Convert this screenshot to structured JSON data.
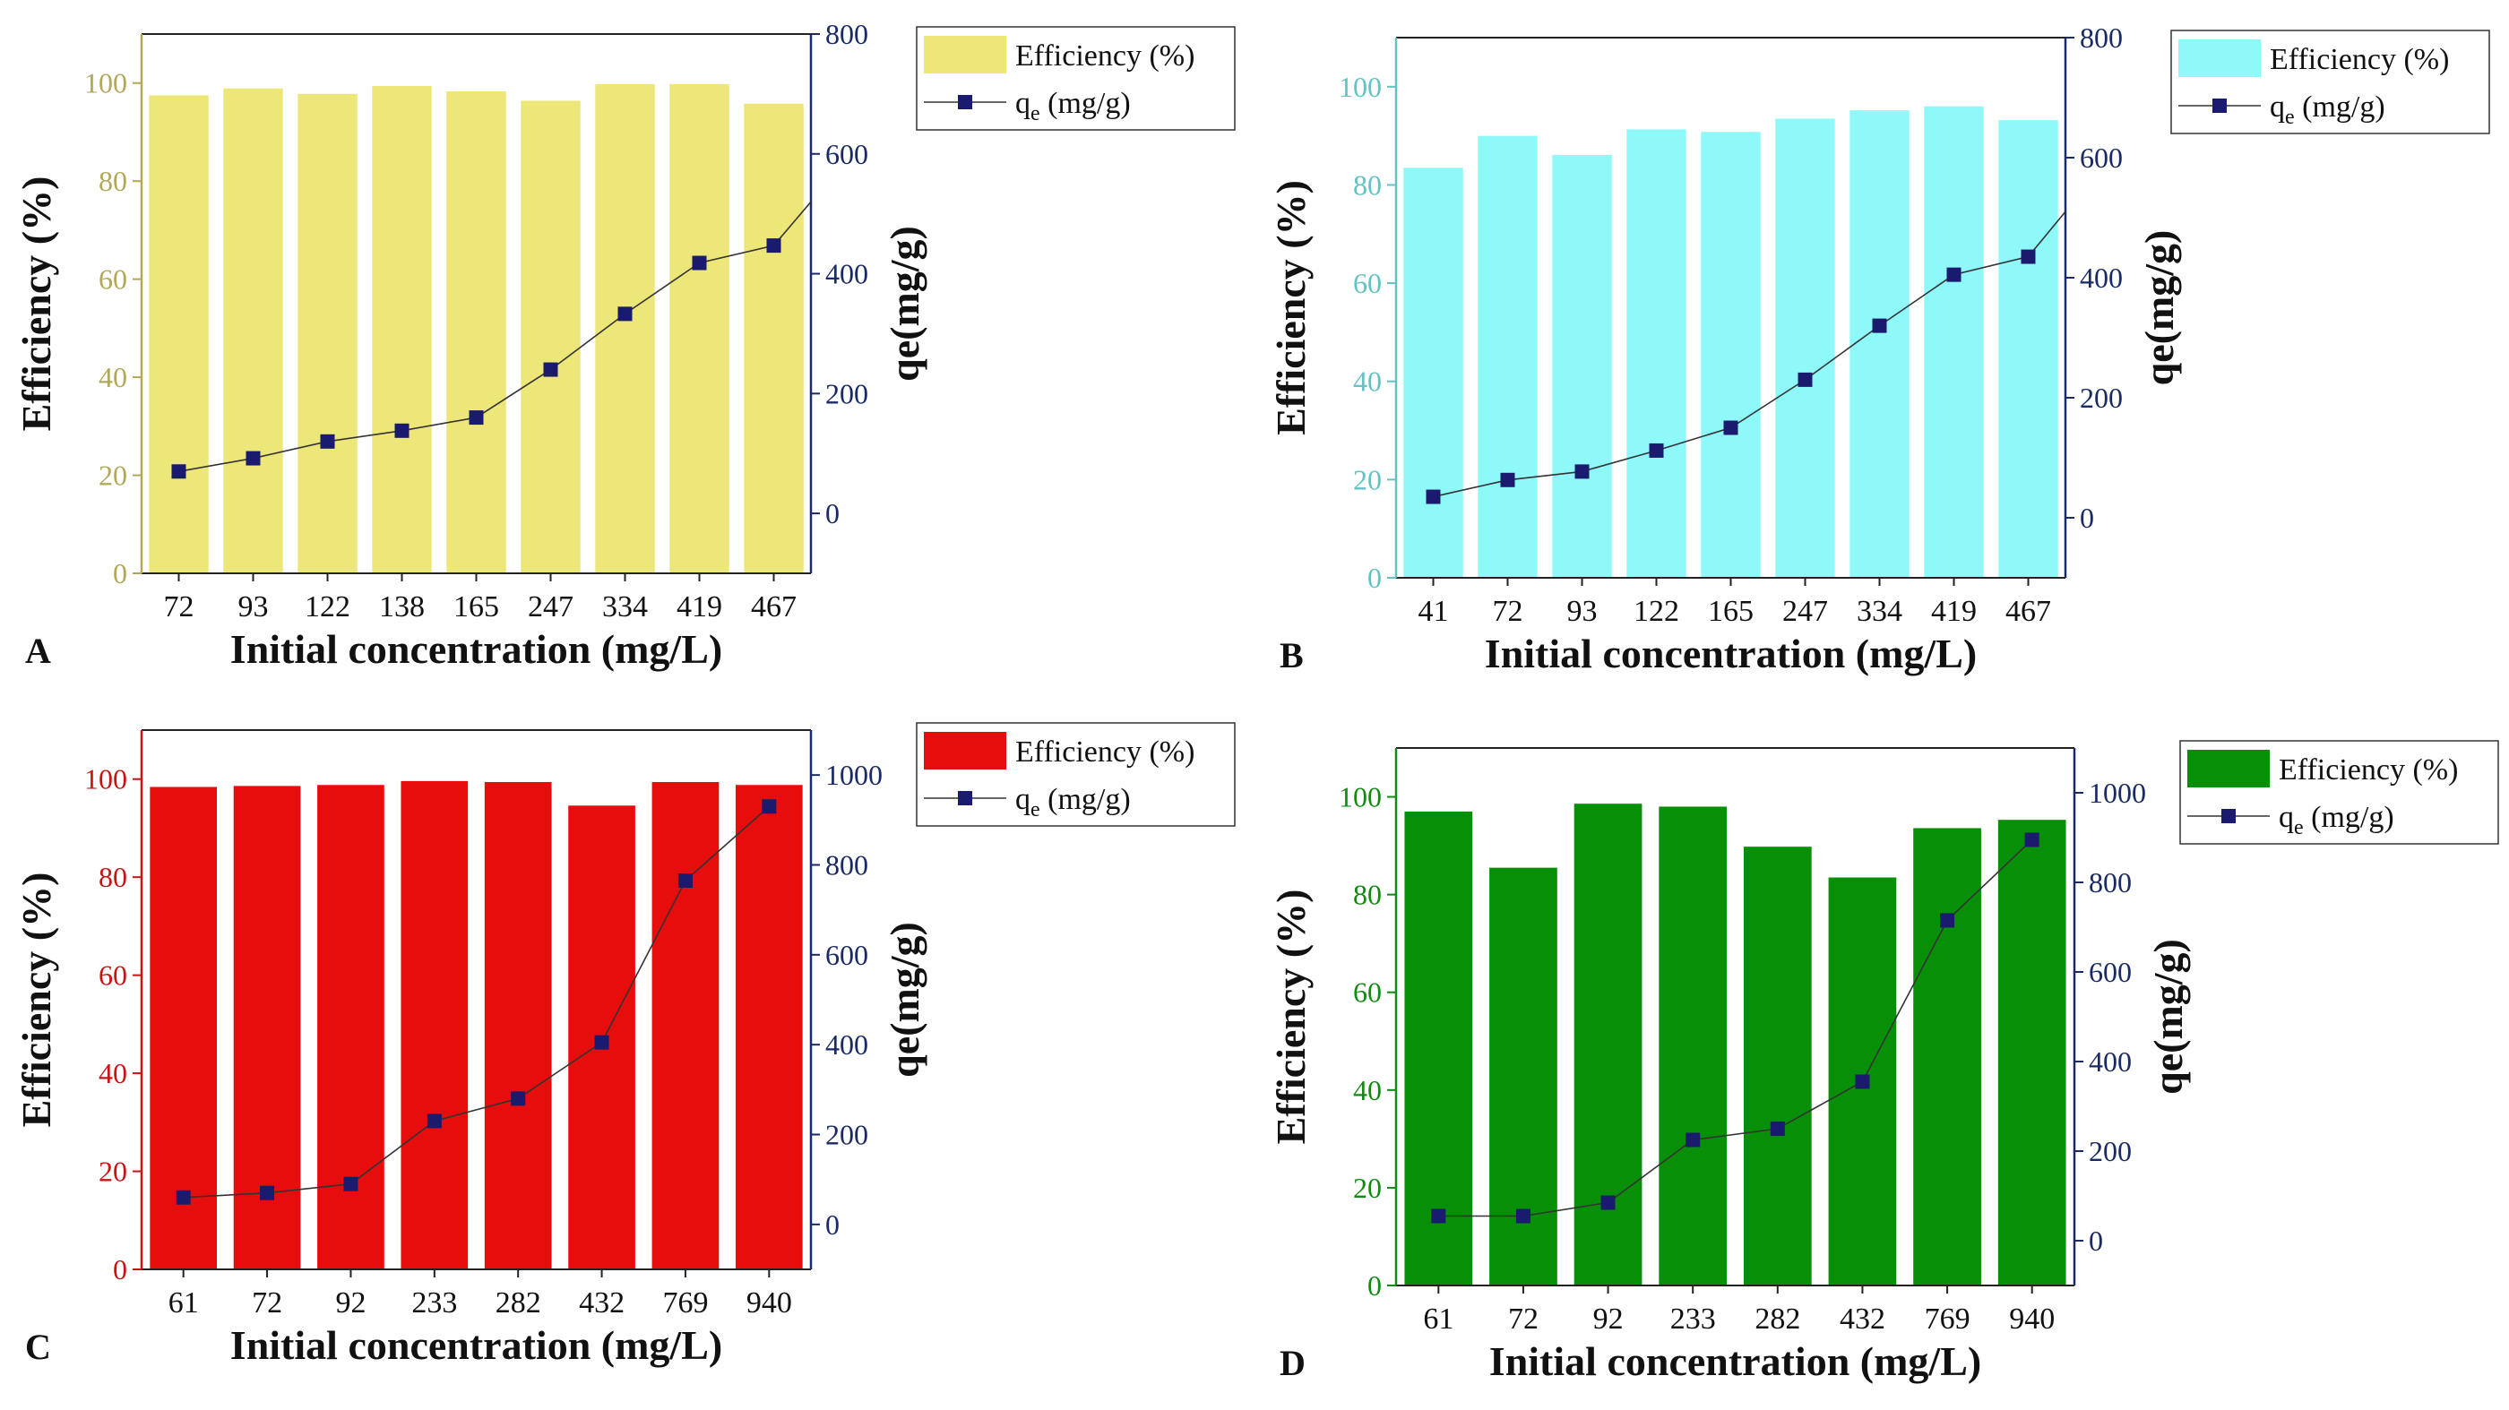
{
  "figure": {
    "description_hidden": false
  },
  "chart_data": [
    {
      "type": "bar",
      "panel_label": "A",
      "bar_color": "#ede679",
      "left_axis_color": "#b1a85a",
      "right_axis_color": "#1a2a66",
      "line_color": "#1a1a6e",
      "categories": [
        "72",
        "93",
        "122",
        "138",
        "165",
        "247",
        "334",
        "419",
        "467"
      ],
      "series": [
        {
          "name": "Efficiency (%)",
          "type": "bar",
          "axis": "left",
          "values": [
            97.5,
            98.9,
            97.8,
            99.4,
            98.3,
            96.4,
            99.8,
            99.8,
            95.8
          ]
        },
        {
          "name": "q_e (mg/g)",
          "type": "line",
          "axis": "right",
          "values": [
            70,
            92,
            120,
            138,
            160,
            240,
            333,
            418,
            447
          ],
          "line_end": 520
        }
      ],
      "legend": {
        "bar_label": "Efficiency (%)",
        "line_label": "q",
        "line_sub": "e",
        "line_unit": " (mg/g)",
        "placement": "top-right"
      },
      "xlabel": "Initial concentration (mg/L)",
      "ylabel_left": "Efficiency (%)",
      "ylabel_right": "qe(mg/g)",
      "ylim_left": [
        0,
        110
      ],
      "ylim_right": [
        -100,
        800
      ],
      "yticks_left": [
        0,
        20,
        40,
        60,
        80,
        100
      ],
      "yticks_right": [
        0,
        200,
        400,
        600,
        800
      ]
    },
    {
      "type": "bar",
      "panel_label": "B",
      "bar_color": "#8ff9fa",
      "left_axis_color": "#64c2c2",
      "right_axis_color": "#1a2a66",
      "line_color": "#1a1a6e",
      "categories": [
        "41",
        "72",
        "93",
        "122",
        "165",
        "247",
        "334",
        "419",
        "467"
      ],
      "series": [
        {
          "name": "Efficiency (%)",
          "type": "bar",
          "axis": "left",
          "values": [
            83.5,
            90.0,
            86.1,
            91.3,
            90.8,
            93.5,
            95.2,
            96.0,
            93.2
          ]
        },
        {
          "name": "q_e (mg/g)",
          "type": "line",
          "axis": "right",
          "values": [
            35,
            63,
            77,
            112,
            150,
            230,
            320,
            405,
            435
          ],
          "line_end": 510
        }
      ],
      "legend": {
        "bar_label": "Efficiency (%)",
        "line_label": "q",
        "line_sub": "e",
        "line_unit": " (mg/g)",
        "placement": "top-right"
      },
      "xlabel": "Initial concentration (mg/L)",
      "ylabel_left": "Efficiency (%)",
      "ylabel_right": "qe(mg/g)",
      "ylim_left": [
        0,
        110
      ],
      "ylim_right": [
        -100,
        800
      ],
      "yticks_left": [
        0,
        20,
        40,
        60,
        80,
        100
      ],
      "yticks_right": [
        0,
        200,
        400,
        600,
        800
      ]
    },
    {
      "type": "bar",
      "panel_label": "C",
      "bar_color": "#e80d0d",
      "left_axis_color": "#c81414",
      "right_axis_color": "#1a2a66",
      "line_color": "#1a1a6e",
      "categories": [
        "61",
        "72",
        "92",
        "233",
        "282",
        "432",
        "769",
        "940"
      ],
      "series": [
        {
          "name": "Efficiency (%)",
          "type": "bar",
          "axis": "left",
          "values": [
            98.4,
            98.6,
            98.8,
            99.6,
            99.4,
            94.6,
            99.4,
            98.8
          ]
        },
        {
          "name": "q_e (mg/g)",
          "type": "line",
          "axis": "right",
          "values": [
            60,
            70,
            90,
            230,
            280,
            405,
            765,
            930
          ],
          "line_end": null
        }
      ],
      "legend": {
        "bar_label": "Efficiency (%)",
        "line_label": "q",
        "line_sub": "e",
        "line_unit": " (mg/g)",
        "placement": "top-right"
      },
      "xlabel": "Initial concentration (mg/L)",
      "ylabel_left": "Efficiency (%)",
      "ylabel_right": "qe(mg/g)",
      "ylim_left": [
        0,
        110
      ],
      "ylim_right": [
        -100,
        1100
      ],
      "yticks_left": [
        0,
        20,
        40,
        60,
        80,
        100
      ],
      "yticks_right": [
        0,
        200,
        400,
        600,
        800,
        1000
      ]
    },
    {
      "type": "bar",
      "panel_label": "D",
      "bar_color": "#078f07",
      "left_axis_color": "#138a13",
      "right_axis_color": "#1a2a66",
      "line_color": "#1a1a6e",
      "categories": [
        "61",
        "72",
        "92",
        "233",
        "282",
        "432",
        "769",
        "940"
      ],
      "series": [
        {
          "name": "Efficiency (%)",
          "type": "bar",
          "axis": "left",
          "values": [
            97.0,
            85.5,
            98.6,
            98.0,
            89.8,
            83.5,
            93.6,
            95.3
          ]
        },
        {
          "name": "q_e (mg/g)",
          "type": "line",
          "axis": "right",
          "values": [
            55,
            55,
            85,
            225,
            250,
            355,
            715,
            895
          ],
          "line_end": null
        }
      ],
      "legend": {
        "bar_label": "Efficiency (%)",
        "line_label": "q",
        "line_sub": "e",
        "line_unit": " (mg/g)",
        "placement": "top-right"
      },
      "xlabel": "Initial concentration (mg/L)",
      "ylabel_left": "Efficiency (%)",
      "ylabel_right": "qe(mg/g)",
      "ylim_left": [
        0,
        110
      ],
      "ylim_right": [
        -100,
        1100
      ],
      "yticks_left": [
        0,
        20,
        40,
        60,
        80,
        100
      ],
      "yticks_right": [
        0,
        200,
        400,
        600,
        800,
        1000
      ]
    }
  ]
}
